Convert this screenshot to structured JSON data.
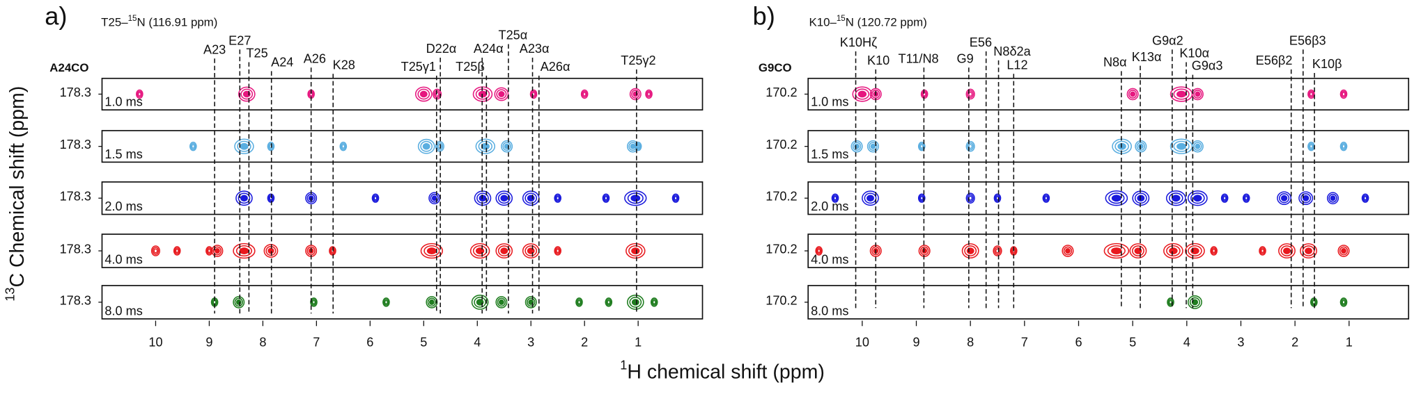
{
  "y_label": {
    "sup": "13",
    "text": "C Chemical shift (ppm)"
  },
  "x_label": {
    "sup": "1",
    "text": "H chemical shift (ppm)"
  },
  "chart_data": [
    {
      "type": "nmr-strips",
      "panel": "a)",
      "subtitle": {
        "pre": "T25–",
        "sup": "15",
        "post": "N (116.91 ppm)"
      },
      "strip_label": "A24CO",
      "xlim": [
        11,
        -0.2
      ],
      "xticks": [
        10,
        9,
        8,
        7,
        6,
        5,
        4,
        3,
        2,
        1
      ],
      "assignments": [
        {
          "label": "A23",
          "x": 8.9
        },
        {
          "label": "E27",
          "x": 8.43
        },
        {
          "label": "T25",
          "x": 8.26
        },
        {
          "label": "A24",
          "x": 7.84
        },
        {
          "label": "A26",
          "x": 7.1
        },
        {
          "label": "K28",
          "x": 6.69
        },
        {
          "label": "T25γ1",
          "x": 4.76
        },
        {
          "label": "D22α",
          "x": 4.69
        },
        {
          "label": "T25β",
          "x": 3.83
        },
        {
          "label": "A24α",
          "x": 3.91
        },
        {
          "label": "T25α",
          "x": 3.42
        },
        {
          "label": "A23α",
          "x": 2.97
        },
        {
          "label": "A26α",
          "x": 2.85
        },
        {
          "label": "T25γ2",
          "x": 1.03
        }
      ],
      "strips": [
        {
          "ytick": 178.3,
          "name": "1.0 ms",
          "color": "#e6177f",
          "peaks": [
            [
              10.3,
              0.1
            ],
            [
              8.3,
              0.3
            ],
            [
              7.1,
              0.1
            ],
            [
              5.0,
              0.3
            ],
            [
              4.75,
              0.15
            ],
            [
              3.9,
              0.35
            ],
            [
              3.55,
              0.25
            ],
            [
              2.95,
              0.1
            ],
            [
              2.0,
              0.1
            ],
            [
              1.05,
              0.2
            ],
            [
              0.8,
              0.1
            ]
          ]
        },
        {
          "ytick": 178.3,
          "name": "1.5 ms",
          "color": "#5aaee0",
          "peaks": [
            [
              9.3,
              0.1
            ],
            [
              8.35,
              0.35
            ],
            [
              7.85,
              0.1
            ],
            [
              6.5,
              0.1
            ],
            [
              4.95,
              0.3
            ],
            [
              4.7,
              0.15
            ],
            [
              3.85,
              0.35
            ],
            [
              3.45,
              0.2
            ],
            [
              1.1,
              0.2
            ],
            [
              1.0,
              0.1
            ]
          ]
        },
        {
          "ytick": 178.3,
          "name": "2.0 ms",
          "color": "#1a1adc",
          "peaks": [
            [
              8.35,
              0.3
            ],
            [
              7.85,
              0.1
            ],
            [
              7.1,
              0.2
            ],
            [
              5.9,
              0.1
            ],
            [
              4.8,
              0.2
            ],
            [
              3.9,
              0.3
            ],
            [
              3.5,
              0.3
            ],
            [
              3.0,
              0.3
            ],
            [
              2.5,
              0.1
            ],
            [
              1.6,
              0.1
            ],
            [
              1.05,
              0.4
            ],
            [
              0.3,
              0.1
            ]
          ]
        },
        {
          "ytick": 178.3,
          "name": "4.0 ms",
          "color": "#e8191e",
          "peaks": [
            [
              10.0,
              0.15
            ],
            [
              9.6,
              0.1
            ],
            [
              9.0,
              0.1
            ],
            [
              8.85,
              0.2
            ],
            [
              8.35,
              0.4
            ],
            [
              7.85,
              0.25
            ],
            [
              7.1,
              0.2
            ],
            [
              6.7,
              0.1
            ],
            [
              4.85,
              0.4
            ],
            [
              3.95,
              0.35
            ],
            [
              3.5,
              0.3
            ],
            [
              3.0,
              0.3
            ],
            [
              2.5,
              0.1
            ],
            [
              1.05,
              0.35
            ]
          ]
        },
        {
          "ytick": 178.3,
          "name": "8.0 ms",
          "color": "#1f7d1f",
          "peaks": [
            [
              8.9,
              0.1
            ],
            [
              8.45,
              0.2
            ],
            [
              7.05,
              0.1
            ],
            [
              5.7,
              0.1
            ],
            [
              4.85,
              0.2
            ],
            [
              3.95,
              0.3
            ],
            [
              3.55,
              0.2
            ],
            [
              3.0,
              0.2
            ],
            [
              2.1,
              0.1
            ],
            [
              1.55,
              0.1
            ],
            [
              1.05,
              0.3
            ],
            [
              0.7,
              0.1
            ]
          ]
        }
      ]
    },
    {
      "type": "nmr-strips",
      "panel": "b)",
      "subtitle": {
        "pre": "K10–",
        "sup": "15",
        "post": "N (120.72 ppm)"
      },
      "strip_label": "G9CO",
      "xlim": [
        11,
        -0.1
      ],
      "xticks": [
        10,
        9,
        8,
        7,
        6,
        5,
        4,
        3,
        2,
        1
      ],
      "assignments": [
        {
          "label": "K10Hζ",
          "x": 10.12
        },
        {
          "label": "K10",
          "x": 9.75
        },
        {
          "label": "T11/N8",
          "x": 8.86
        },
        {
          "label": "G9",
          "x": 8.03
        },
        {
          "label": "E56",
          "x": 7.71
        },
        {
          "label": "N8δ2a",
          "x": 7.48
        },
        {
          "label": "L12",
          "x": 7.2
        },
        {
          "label": "N8α",
          "x": 5.21
        },
        {
          "label": "K13α",
          "x": 4.86
        },
        {
          "label": "G9α2",
          "x": 4.27
        },
        {
          "label": "K10α",
          "x": 4.01
        },
        {
          "label": "G9α3",
          "x": 3.89
        },
        {
          "label": "E56β2",
          "x": 2.07
        },
        {
          "label": "E56β3",
          "x": 1.85
        },
        {
          "label": "K10β",
          "x": 1.64
        }
      ],
      "strips": [
        {
          "ytick": 170.2,
          "name": "1.0 ms",
          "color": "#e6177f",
          "peaks": [
            [
              10.0,
              0.35
            ],
            [
              9.75,
              0.2
            ],
            [
              8.85,
              0.1
            ],
            [
              8.0,
              0.15
            ],
            [
              5.0,
              0.2
            ],
            [
              4.1,
              0.4
            ],
            [
              3.8,
              0.2
            ],
            [
              1.7,
              0.1
            ],
            [
              1.1,
              0.1
            ]
          ]
        },
        {
          "ytick": 170.2,
          "name": "1.5 ms",
          "color": "#5aaee0",
          "peaks": [
            [
              10.1,
              0.2
            ],
            [
              9.8,
              0.2
            ],
            [
              8.9,
              0.1
            ],
            [
              8.0,
              0.15
            ],
            [
              5.2,
              0.35
            ],
            [
              4.85,
              0.2
            ],
            [
              4.1,
              0.4
            ],
            [
              3.8,
              0.2
            ],
            [
              1.7,
              0.1
            ],
            [
              1.1,
              0.1
            ]
          ]
        },
        {
          "ytick": 170.2,
          "name": "2.0 ms",
          "color": "#1a1adc",
          "peaks": [
            [
              10.5,
              0.1
            ],
            [
              9.85,
              0.3
            ],
            [
              8.9,
              0.1
            ],
            [
              8.0,
              0.15
            ],
            [
              7.5,
              0.1
            ],
            [
              6.6,
              0.1
            ],
            [
              5.3,
              0.4
            ],
            [
              4.85,
              0.3
            ],
            [
              4.2,
              0.35
            ],
            [
              3.8,
              0.35
            ],
            [
              3.3,
              0.1
            ],
            [
              2.9,
              0.1
            ],
            [
              2.2,
              0.25
            ],
            [
              1.8,
              0.25
            ],
            [
              1.3,
              0.2
            ],
            [
              0.7,
              0.1
            ]
          ]
        },
        {
          "ytick": 170.2,
          "name": "4.0 ms",
          "color": "#e8191e",
          "peaks": [
            [
              10.8,
              0.1
            ],
            [
              9.75,
              0.2
            ],
            [
              8.85,
              0.2
            ],
            [
              8.0,
              0.3
            ],
            [
              7.5,
              0.15
            ],
            [
              7.2,
              0.1
            ],
            [
              6.2,
              0.2
            ],
            [
              5.3,
              0.45
            ],
            [
              4.9,
              0.3
            ],
            [
              4.25,
              0.35
            ],
            [
              3.85,
              0.35
            ],
            [
              3.5,
              0.1
            ],
            [
              2.6,
              0.1
            ],
            [
              2.15,
              0.3
            ],
            [
              1.75,
              0.3
            ],
            [
              1.1,
              0.2
            ]
          ]
        },
        {
          "ytick": 170.2,
          "name": "8.0 ms",
          "color": "#1f7d1f",
          "peaks": [
            [
              4.3,
              0.1
            ],
            [
              3.85,
              0.25
            ],
            [
              1.65,
              0.1
            ],
            [
              1.1,
              0.1
            ]
          ]
        }
      ]
    }
  ]
}
